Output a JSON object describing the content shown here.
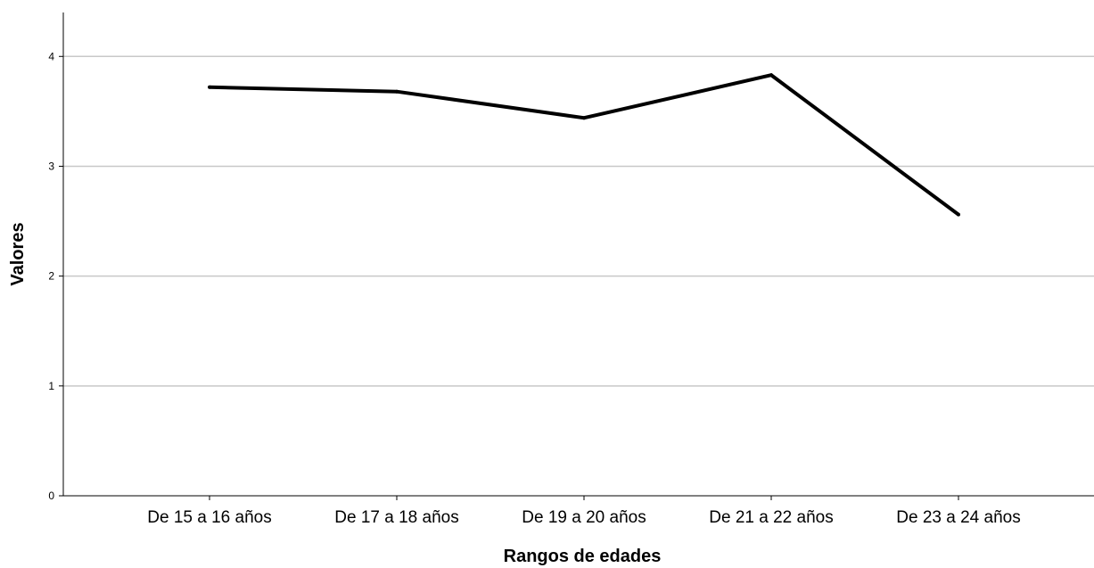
{
  "chart_data": {
    "type": "line",
    "title": "",
    "xlabel": "Rangos de edades",
    "ylabel": "Valores",
    "categories": [
      "De 15 a 16 años",
      "De 17 a 18 años",
      "De 19 a 20 años",
      "De 21 a 22 años",
      "De 23 a 24 años"
    ],
    "series": [
      {
        "values": [
          3.72,
          3.68,
          3.44,
          3.83,
          2.56
        ],
        "color": "#000000"
      }
    ],
    "ylim": [
      0,
      4.4
    ],
    "yticks": [
      0,
      1,
      2,
      3,
      4
    ],
    "grid": true,
    "grid_color": "#c8c8c8",
    "legend": "none"
  }
}
